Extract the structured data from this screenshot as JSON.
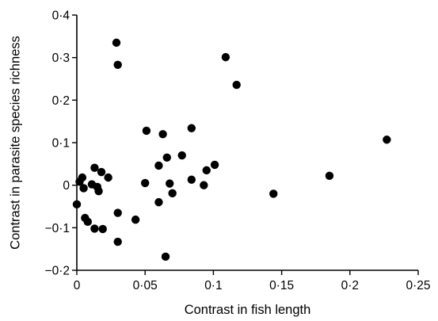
{
  "chart_data": {
    "type": "scatter",
    "title": "",
    "xlabel": "Contrast in fish length",
    "ylabel": "Contrast in parasite species richness",
    "xlim": [
      0,
      0.25
    ],
    "ylim": [
      -0.2,
      0.4
    ],
    "xticks": [
      0,
      0.05,
      0.1,
      0.15,
      0.2,
      0.25
    ],
    "xtick_labels": [
      "0",
      "0·05",
      "0·1",
      "0·15",
      "0·2",
      "0·25"
    ],
    "yticks": [
      -0.2,
      -0.1,
      0,
      0.1,
      0.2,
      0.3,
      0.4
    ],
    "ytick_labels": [
      "−0·2",
      "−0·1",
      "0",
      "0·1",
      "0·2",
      "0·3",
      "0·4"
    ],
    "grid": false,
    "legend": "none",
    "marker_color": "#000000",
    "points": [
      {
        "x": 0.0,
        "y": -0.045
      },
      {
        "x": 0.002,
        "y": 0.008
      },
      {
        "x": 0.004,
        "y": 0.018
      },
      {
        "x": 0.005,
        "y": -0.007
      },
      {
        "x": 0.006,
        "y": -0.077
      },
      {
        "x": 0.008,
        "y": -0.086
      },
      {
        "x": 0.011,
        "y": 0.002
      },
      {
        "x": 0.013,
        "y": 0.041
      },
      {
        "x": 0.013,
        "y": -0.102
      },
      {
        "x": 0.015,
        "y": -0.004
      },
      {
        "x": 0.016,
        "y": -0.014
      },
      {
        "x": 0.018,
        "y": 0.031
      },
      {
        "x": 0.019,
        "y": -0.103
      },
      {
        "x": 0.023,
        "y": 0.018
      },
      {
        "x": 0.029,
        "y": 0.335
      },
      {
        "x": 0.03,
        "y": 0.283
      },
      {
        "x": 0.03,
        "y": -0.065
      },
      {
        "x": 0.03,
        "y": -0.133
      },
      {
        "x": 0.043,
        "y": -0.081
      },
      {
        "x": 0.05,
        "y": 0.005
      },
      {
        "x": 0.051,
        "y": 0.128
      },
      {
        "x": 0.06,
        "y": 0.046
      },
      {
        "x": 0.06,
        "y": -0.04
      },
      {
        "x": 0.063,
        "y": 0.12
      },
      {
        "x": 0.065,
        "y": -0.168
      },
      {
        "x": 0.066,
        "y": 0.065
      },
      {
        "x": 0.068,
        "y": 0.004
      },
      {
        "x": 0.07,
        "y": -0.019
      },
      {
        "x": 0.077,
        "y": 0.07
      },
      {
        "x": 0.084,
        "y": 0.134
      },
      {
        "x": 0.084,
        "y": 0.013
      },
      {
        "x": 0.093,
        "y": 0.0
      },
      {
        "x": 0.095,
        "y": 0.035
      },
      {
        "x": 0.101,
        "y": 0.048
      },
      {
        "x": 0.109,
        "y": 0.301
      },
      {
        "x": 0.117,
        "y": 0.236
      },
      {
        "x": 0.144,
        "y": -0.02
      },
      {
        "x": 0.185,
        "y": 0.022
      },
      {
        "x": 0.227,
        "y": 0.107
      }
    ]
  }
}
